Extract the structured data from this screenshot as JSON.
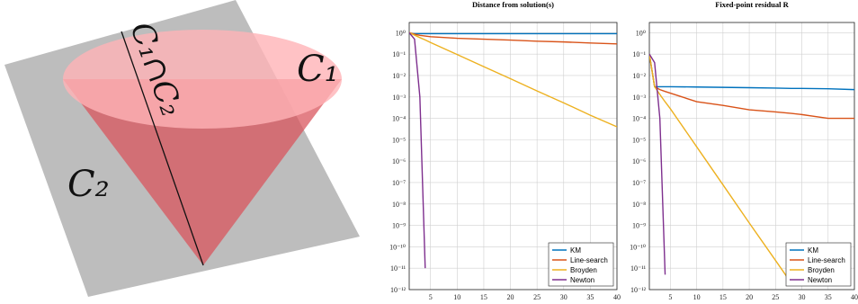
{
  "illustration": {
    "labels": [
      "C₁",
      "C₂",
      "C₁∩C₂"
    ]
  },
  "chart_data": [
    {
      "type": "line",
      "title": "Distance from solution(s)",
      "y_scale": "log",
      "grid": true,
      "legend": "lower right",
      "xlim": [
        1,
        40
      ],
      "xticks": [
        5,
        10,
        15,
        20,
        25,
        30,
        35,
        40
      ],
      "ylim": [
        1e-12,
        3
      ],
      "yticks": [
        {
          "value": 1,
          "label": "10⁰"
        },
        {
          "value": 0.1,
          "label": "10⁻¹"
        },
        {
          "value": 0.01,
          "label": "10⁻²"
        },
        {
          "value": 0.001,
          "label": "10⁻³"
        },
        {
          "value": 0.0001,
          "label": "10⁻⁴"
        },
        {
          "value": 1e-05,
          "label": "10⁻⁵"
        },
        {
          "value": 1e-06,
          "label": "10⁻⁶"
        },
        {
          "value": 1e-07,
          "label": "10⁻⁷"
        },
        {
          "value": 1e-08,
          "label": "10⁻⁸"
        },
        {
          "value": 1e-09,
          "label": "10⁻⁹"
        },
        {
          "value": 1e-10,
          "label": "10⁻¹⁰"
        },
        {
          "value": 1e-11,
          "label": "10⁻¹¹"
        },
        {
          "value": 1e-12,
          "label": "10⁻¹²"
        }
      ],
      "x": [
        1,
        2,
        3,
        4,
        5,
        10,
        15,
        20,
        25,
        30,
        35,
        40
      ],
      "series": [
        {
          "name": "KM",
          "color": "#0072bd",
          "values": [
            0.9,
            0.9,
            0.9,
            0.9,
            0.9,
            0.9,
            0.9,
            0.9,
            0.9,
            0.9,
            0.9,
            0.9
          ]
        },
        {
          "name": "Line-search",
          "color": "#d95319",
          "values": [
            1,
            0.85,
            0.75,
            0.7,
            0.65,
            0.55,
            0.5,
            0.45,
            0.4,
            0.37,
            0.33,
            0.3
          ]
        },
        {
          "name": "Broyden",
          "color": "#edb120",
          "values": [
            1,
            0.77,
            0.59,
            0.46,
            0.35,
            0.096,
            0.026,
            0.0071,
            0.0019,
            0.00053,
            0.00014,
            4e-05
          ]
        },
        {
          "name": "Newton",
          "color": "#7e2f8e",
          "values": [
            1,
            0.5,
            0.001,
            1e-11,
            null,
            null,
            null,
            null,
            null,
            null,
            null,
            null
          ]
        }
      ]
    },
    {
      "type": "line",
      "title": "Fixed-point residual R",
      "y_scale": "log",
      "grid": true,
      "legend": "lower right",
      "xlim": [
        1,
        40
      ],
      "xticks": [
        5,
        10,
        15,
        20,
        25,
        30,
        35,
        40
      ],
      "ylim": [
        1e-12,
        3
      ],
      "yticks": [
        {
          "value": 1,
          "label": "10⁰"
        },
        {
          "value": 0.1,
          "label": "10⁻¹"
        },
        {
          "value": 0.01,
          "label": "10⁻²"
        },
        {
          "value": 0.001,
          "label": "10⁻³"
        },
        {
          "value": 0.0001,
          "label": "10⁻⁴"
        },
        {
          "value": 1e-05,
          "label": "10⁻⁵"
        },
        {
          "value": 1e-06,
          "label": "10⁻⁶"
        },
        {
          "value": 1e-07,
          "label": "10⁻⁷"
        },
        {
          "value": 1e-08,
          "label": "10⁻⁸"
        },
        {
          "value": 1e-09,
          "label": "10⁻⁹"
        },
        {
          "value": 1e-10,
          "label": "10⁻¹⁰"
        },
        {
          "value": 1e-11,
          "label": "10⁻¹¹"
        },
        {
          "value": 1e-12,
          "label": "10⁻¹²"
        }
      ],
      "x": [
        1,
        2,
        3,
        4,
        5,
        10,
        15,
        20,
        25,
        28,
        30,
        35,
        40
      ],
      "series": [
        {
          "name": "KM",
          "color": "#0072bd",
          "values": [
            0.1,
            0.003,
            0.003,
            0.003,
            0.003,
            0.0029,
            0.0028,
            0.0027,
            0.0026,
            0.0025,
            0.0025,
            0.0024,
            0.0022
          ]
        },
        {
          "name": "Line-search",
          "color": "#d95319",
          "values": [
            0.1,
            0.003,
            0.0022,
            0.0018,
            0.0015,
            0.0006,
            0.0004,
            0.00025,
            0.0002,
            0.00017,
            0.00015,
            0.0001,
            0.0001
          ]
        },
        {
          "name": "Broyden",
          "color": "#edb120",
          "values": [
            0.1,
            0.003,
            0.0013,
            0.00059,
            0.00028,
            4.7e-06,
            7.9e-08,
            1.3e-09,
            2.3e-11,
            2e-12,
            null,
            null,
            null
          ]
        },
        {
          "name": "Newton",
          "color": "#7e2f8e",
          "values": [
            0.1,
            0.04,
            0.0001,
            5e-12,
            null,
            null,
            null,
            null,
            null,
            null,
            null,
            null,
            null
          ]
        }
      ]
    }
  ]
}
